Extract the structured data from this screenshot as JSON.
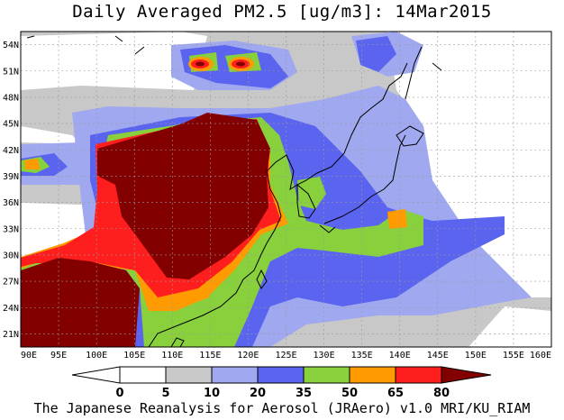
{
  "title": "Daily Averaged PM2.5 [ug/m3]: 14Mar2015",
  "footer": "The Japanese Reanalysis for Aerosol (JRAero) v1.0 MRI/KU_RIAM",
  "x_axis": {
    "ticks": [
      "90E",
      "95E",
      "100E",
      "105E",
      "110E",
      "115E",
      "120E",
      "125E",
      "130E",
      "135E",
      "140E",
      "145E",
      "150E",
      "155E",
      "160E"
    ],
    "range": [
      90,
      160
    ]
  },
  "y_axis": {
    "ticks": [
      "21N",
      "24N",
      "27N",
      "30N",
      "33N",
      "36N",
      "39N",
      "42N",
      "45N",
      "48N",
      "51N",
      "54N"
    ],
    "range": [
      19.5,
      55.5
    ]
  },
  "colorbar": {
    "labels": [
      "0",
      "5",
      "10",
      "20",
      "35",
      "50",
      "65",
      "80"
    ],
    "colors": {
      "lt0": "#ffffff",
      "0_5": "#ffffff",
      "5_10": "#c8c8c8",
      "10_20": "#a0a8f0",
      "20_35": "#5a64ee",
      "35_50": "#88d03c",
      "50_65": "#ff9a00",
      "65_80": "#ff1e1e",
      "gt80": "#820000"
    }
  },
  "colors": {
    "ocean_bg": "#ffffff",
    "coast": "#000000",
    "grid": "#9a9a9a"
  }
}
